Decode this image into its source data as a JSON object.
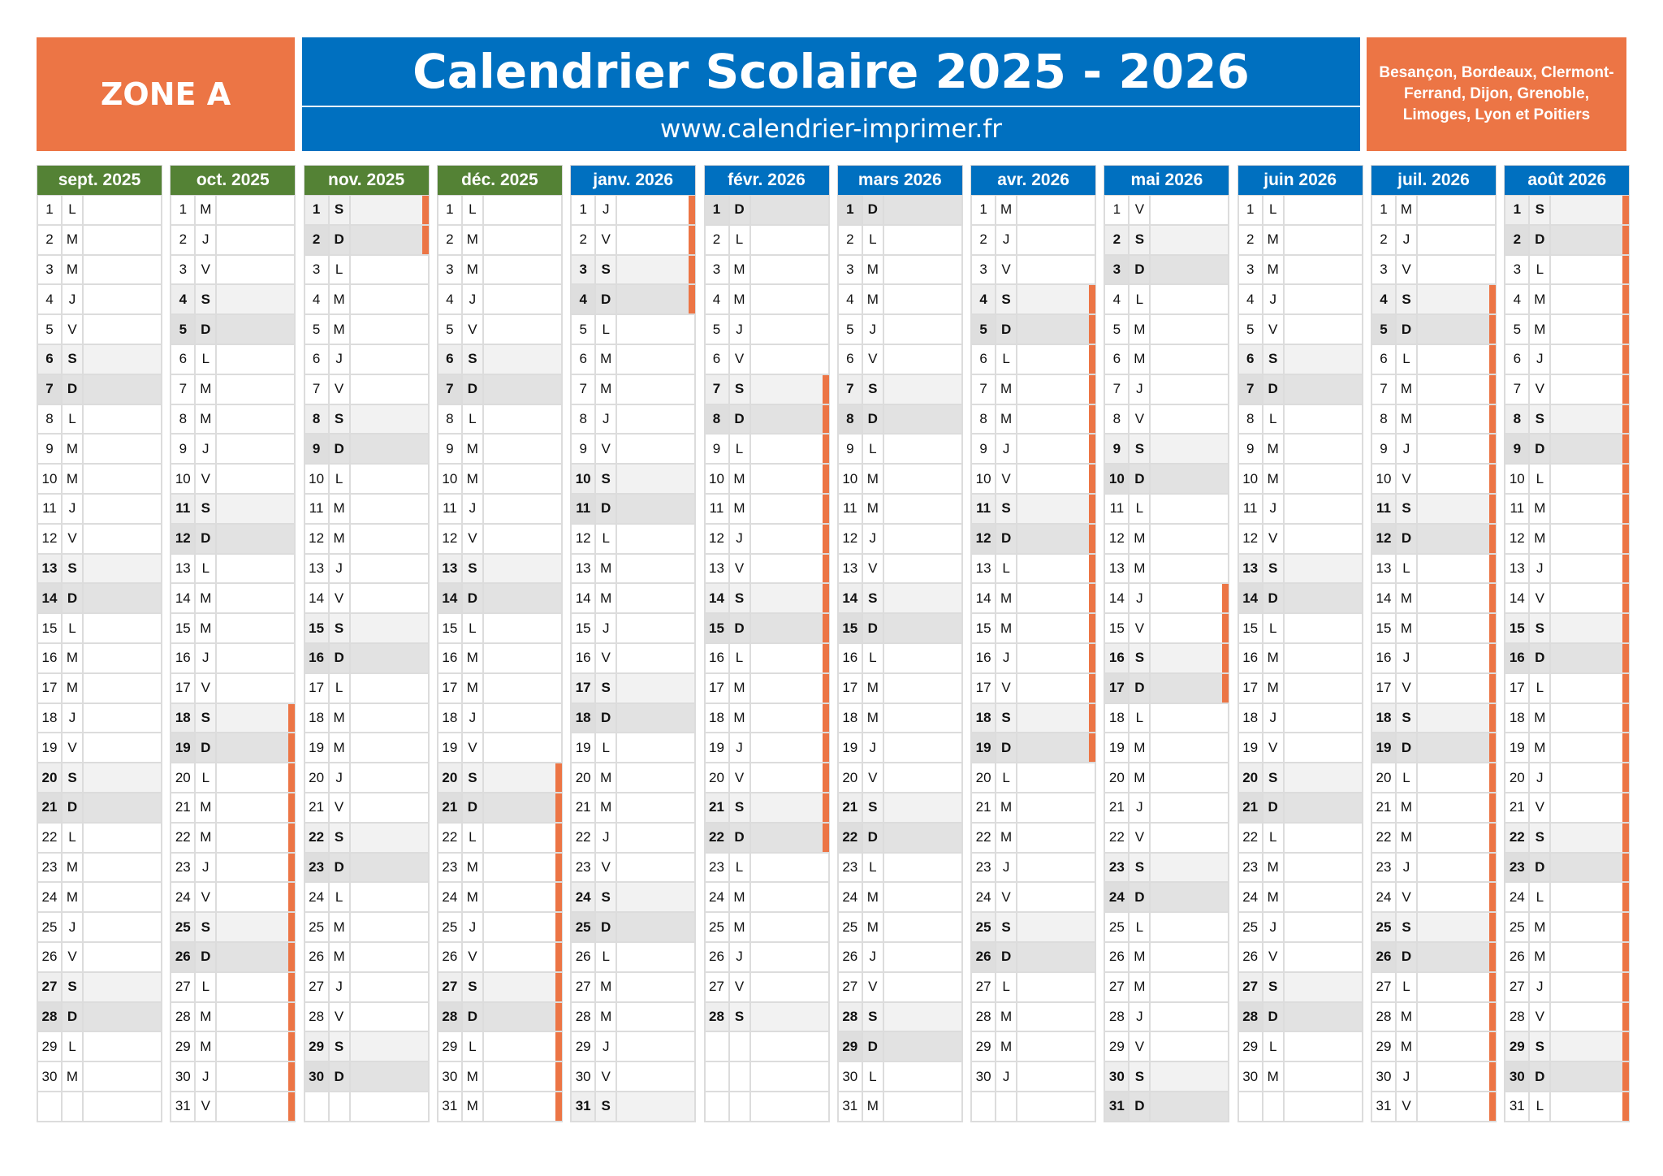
{
  "header": {
    "zone": "ZONE A",
    "title": "Calendrier Scolaire 2025 - 2026",
    "url": "www.calendrier-imprimer.fr",
    "cities": "Besançon, Bordeaux, Clermont-Ferrand, Dijon, Grenoble, Limoges, Lyon et Poitiers"
  },
  "colors": {
    "orange": "#EC7545",
    "blue": "#0070C0",
    "green": "#548235",
    "saturday_bg": "#F2F2F2",
    "sunday_bg": "#E2E2E2"
  },
  "legend": {
    "weekday_letters": [
      "L",
      "M",
      "M",
      "J",
      "V",
      "S",
      "D"
    ]
  },
  "months": [
    {
      "label": "sept. 2025",
      "color": "green",
      "first_weekday": 0,
      "days": 30,
      "holidays": []
    },
    {
      "label": "oct. 2025",
      "color": "green",
      "first_weekday": 2,
      "days": 31,
      "holidays": [
        [
          18,
          31
        ]
      ]
    },
    {
      "label": "nov. 2025",
      "color": "green",
      "first_weekday": 5,
      "days": 30,
      "holidays": [
        [
          1,
          2
        ]
      ]
    },
    {
      "label": "déc. 2025",
      "color": "green",
      "first_weekday": 0,
      "days": 31,
      "holidays": [
        [
          20,
          31
        ]
      ]
    },
    {
      "label": "janv. 2026",
      "color": "blue",
      "first_weekday": 3,
      "days": 31,
      "holidays": [
        [
          1,
          4
        ]
      ]
    },
    {
      "label": "févr. 2026",
      "color": "blue",
      "first_weekday": 6,
      "days": 28,
      "holidays": [
        [
          7,
          22
        ]
      ]
    },
    {
      "label": "mars 2026",
      "color": "blue",
      "first_weekday": 6,
      "days": 31,
      "holidays": []
    },
    {
      "label": "avr. 2026",
      "color": "blue",
      "first_weekday": 2,
      "days": 30,
      "holidays": [
        [
          4,
          19
        ]
      ]
    },
    {
      "label": "mai 2026",
      "color": "blue",
      "first_weekday": 4,
      "days": 31,
      "holidays": [
        [
          14,
          17
        ]
      ]
    },
    {
      "label": "juin 2026",
      "color": "blue",
      "first_weekday": 0,
      "days": 30,
      "holidays": []
    },
    {
      "label": "juil. 2026",
      "color": "blue",
      "first_weekday": 2,
      "days": 31,
      "holidays": [
        [
          4,
          31
        ]
      ]
    },
    {
      "label": "août 2026",
      "color": "blue",
      "first_weekday": 5,
      "days": 31,
      "holidays": [
        [
          1,
          31
        ]
      ]
    }
  ]
}
